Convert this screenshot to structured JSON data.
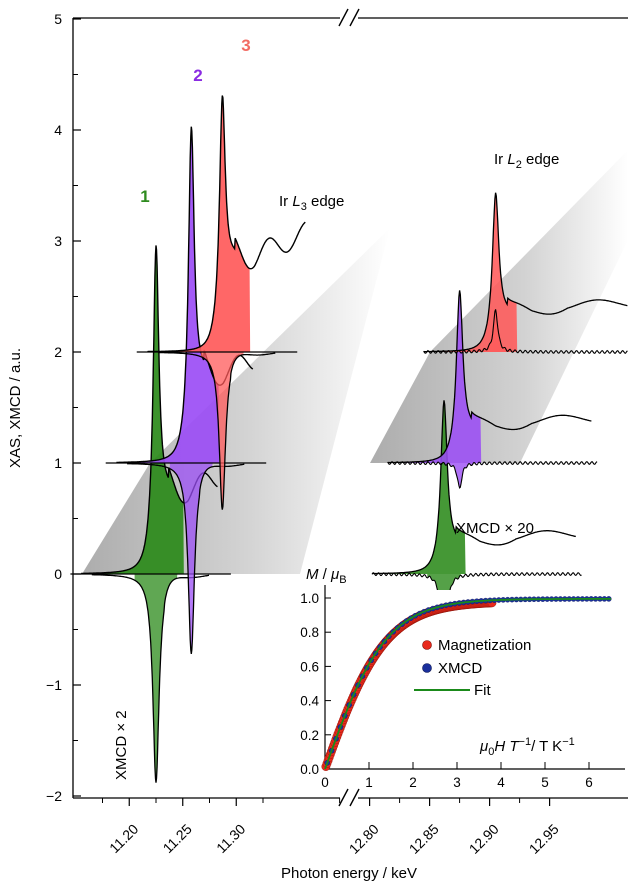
{
  "chart_data": [
    {
      "type": "line",
      "xlabel": "Photon energy / keV",
      "ylabel": "XAS, XMCD / a.u.",
      "ylim": [
        -2,
        5
      ],
      "yticks": [
        "5",
        "4",
        "3",
        "2",
        "1",
        "0",
        "−1",
        "−2"
      ],
      "xbreak": true,
      "xticks_left": [
        "11.20",
        "11.25",
        "11.30"
      ],
      "xticks_right": [
        "12.80",
        "12.85",
        "12.90",
        "12.95"
      ],
      "series_labels": [
        {
          "text": "1",
          "color": "#2e8b1e"
        },
        {
          "text": "2",
          "color": "#8a2be2"
        },
        {
          "text": "3",
          "color": "#f26b63"
        }
      ],
      "edges": [
        {
          "prefix": "Ir ",
          "element": "L",
          "subscript": "3",
          "suffix": " edge"
        },
        {
          "prefix": "Ir ",
          "element": "L",
          "subscript": "2",
          "suffix": " edge"
        }
      ],
      "scale_labels": [
        "XMCD × 2",
        "XMCD × 20"
      ],
      "series": [
        {
          "id": "1",
          "offset": 0,
          "color": "#2b8a1a",
          "l3_peak": 11.225,
          "l3_height": 3.32,
          "l3_xmcd_min": -1.88,
          "l2_peak": 12.862,
          "l2_height": 1.69,
          "l2_xmcd_min": -0.95
        },
        {
          "id": "2",
          "offset": 1,
          "color": "#9b4df5",
          "l3_peak": 11.258,
          "l3_height": 4.42,
          "l3_xmcd_min": -0.72,
          "l2_peak": 12.875,
          "l2_height": 2.7,
          "l2_xmcd_min": 0.77
        },
        {
          "id": "3",
          "offset": 2,
          "color": "#ff5a5a",
          "l3_peak": 11.287,
          "l3_height": 4.73,
          "l3_xmcd_min": 0.58,
          "l2_peak": 12.905,
          "l2_height": 3.6,
          "l2_xmcd_min": 2.38
        }
      ]
    },
    {
      "type": "scatter",
      "title_parts": {
        "numerator": "M",
        "denominator": "μ",
        "denominator_sub": "B"
      },
      "xlabel_parts": [
        "μ",
        "0",
        "H T",
        "−1",
        "/ T K",
        "−1"
      ],
      "xlim": [
        0,
        6.8
      ],
      "ylim": [
        0,
        1.05
      ],
      "xticks": [
        "0",
        "1",
        "2",
        "3",
        "4",
        "5",
        "6"
      ],
      "yticks": [
        "0.0",
        "0.2",
        "0.4",
        "0.6",
        "0.8",
        "1.0"
      ],
      "legend_position": "center-right",
      "series": [
        {
          "name": "Magnetization",
          "color": "#e8291c",
          "marker": "circle",
          "x_range": [
            0,
            3.8
          ],
          "saturation": 0.98
        },
        {
          "name": "XMCD",
          "color": "#1a2f9c",
          "marker": "circle",
          "x_range": [
            0,
            6.5
          ],
          "saturation": 1.0
        },
        {
          "name": "Fit",
          "color": "#1a8a1a",
          "marker": "line"
        }
      ]
    }
  ]
}
